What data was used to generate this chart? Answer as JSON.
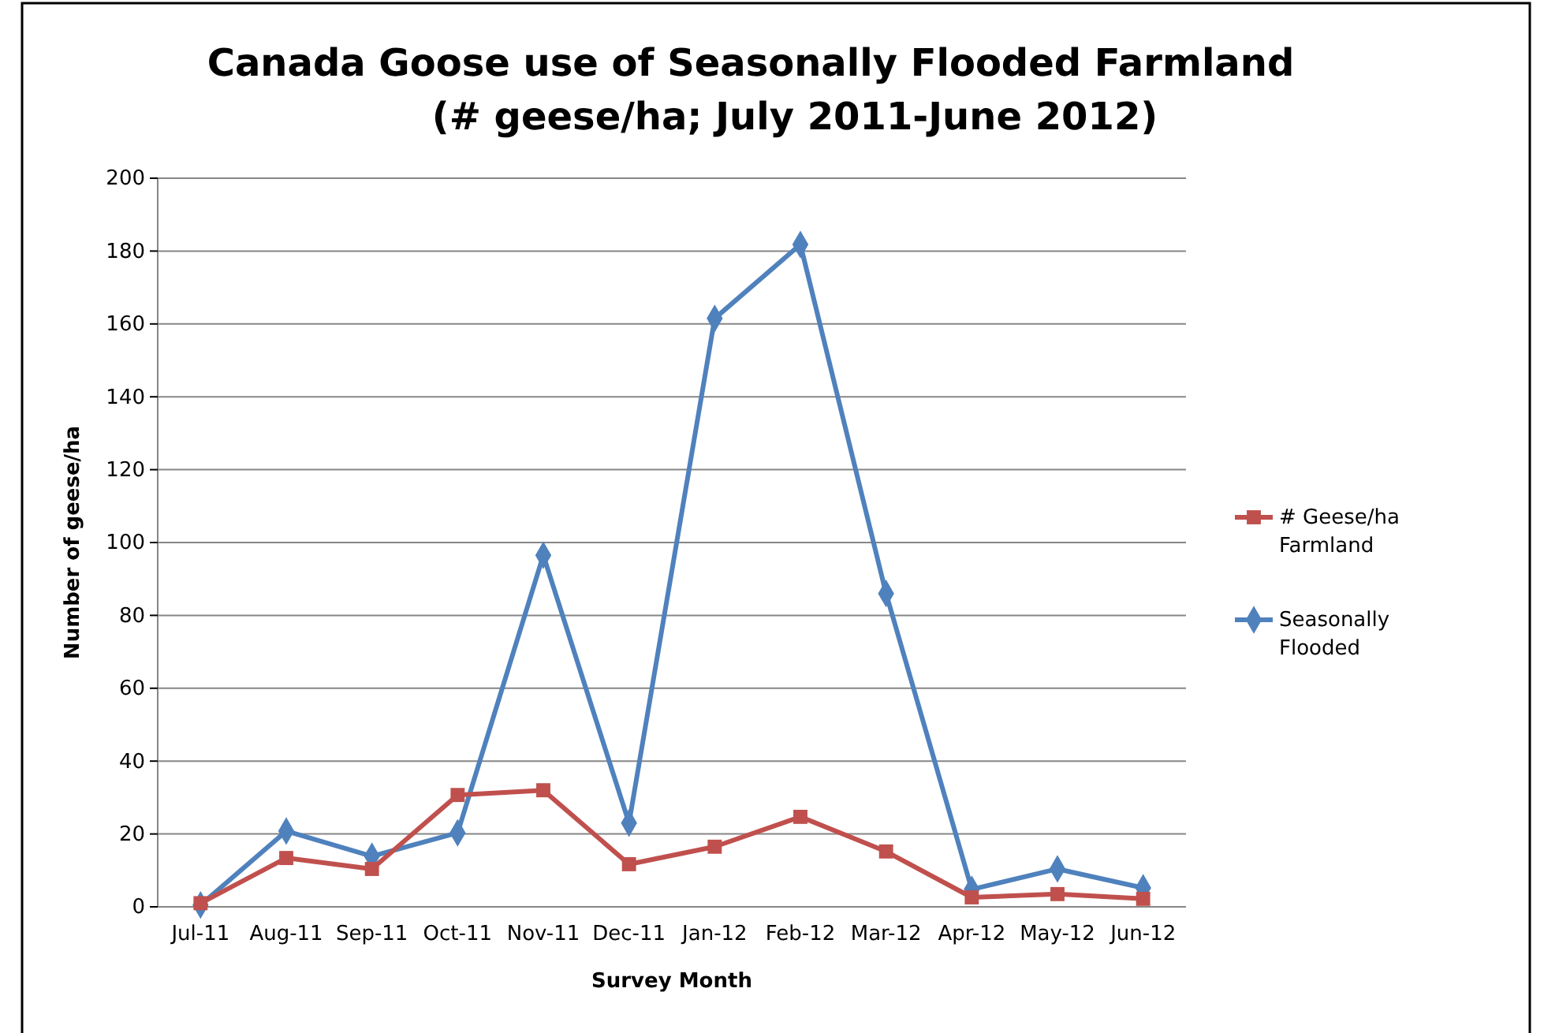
{
  "chart_data": {
    "type": "line",
    "title": "Canada Goose use of Seasonally Flooded Farmland",
    "subtitle": "(# geese/ha; July 2011-June 2012)",
    "xlabel": "Survey Month",
    "ylabel": "Number of geese/ha",
    "categories": [
      "Jul-11",
      "Aug-11",
      "Sep-11",
      "Oct-11",
      "Nov-11",
      "Dec-11",
      "Jan-12",
      "Feb-12",
      "Mar-12",
      "Apr-12",
      "May-12",
      "Jun-12"
    ],
    "series": [
      {
        "name": "# Geese/ha Farmland",
        "color": "#c0504d",
        "marker": "square",
        "values": [
          1,
          13.4,
          10.4,
          30.7,
          32,
          11.7,
          16.5,
          24.7,
          15.2,
          2.6,
          3.5,
          2.2
        ]
      },
      {
        "name": "Seasonally Flooded",
        "color": "#4f81bd",
        "marker": "diamond",
        "values": [
          0.5,
          20.8,
          13.9,
          20.3,
          96.5,
          23,
          161.5,
          181.8,
          86,
          4.8,
          10.4,
          5.2
        ]
      }
    ],
    "ylim": [
      0,
      200
    ],
    "yticks": [
      0,
      20,
      40,
      60,
      80,
      100,
      120,
      140,
      160,
      180,
      200
    ],
    "grid": "y",
    "legend": "right",
    "line_style": "solid"
  }
}
